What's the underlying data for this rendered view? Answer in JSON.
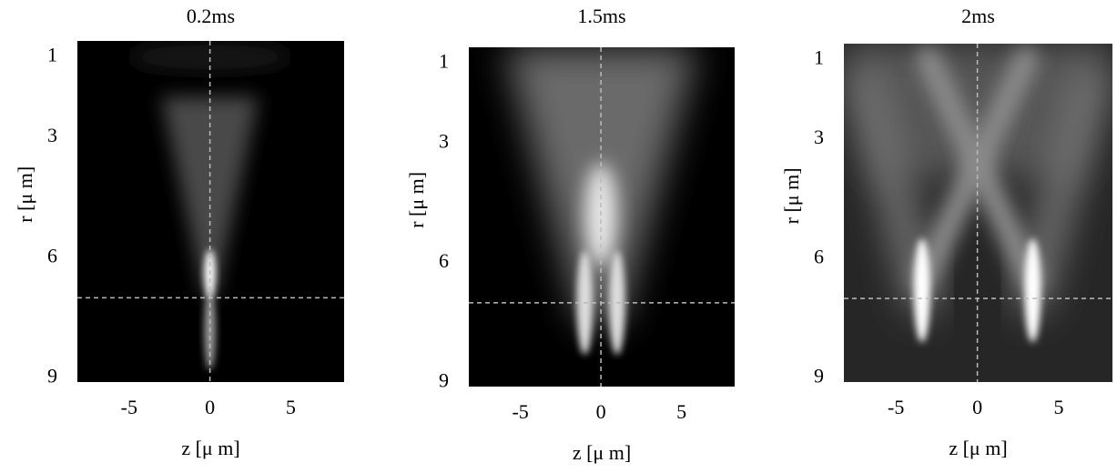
{
  "chart_data": [
    {
      "type": "heatmap",
      "title": "0.2ms",
      "xlabel": "z [μ m]",
      "ylabel": "r [μ m]",
      "xlim": [
        -8.2,
        8.3
      ],
      "ylim": [
        0.6,
        9.1
      ],
      "xticks": [
        -5,
        0,
        5
      ],
      "yticks": [
        1,
        3,
        6,
        9
      ],
      "guides": {
        "x": 0,
        "y": 7
      }
    },
    {
      "type": "heatmap",
      "title": "1.5ms",
      "xlabel": "z [μ m]",
      "ylabel": "r [μ m]",
      "xlim": [
        -8.2,
        8.3
      ],
      "ylim": [
        0.6,
        9.1
      ],
      "xticks": [
        -5,
        0,
        5
      ],
      "yticks": [
        1,
        3,
        6,
        9
      ],
      "guides": {
        "x": 0,
        "y": 7
      }
    },
    {
      "type": "heatmap",
      "title": "2ms",
      "xlabel": "z [μ m]",
      "ylabel": "r [μ m]",
      "xlim": [
        -8.2,
        8.3
      ],
      "ylim": [
        0.6,
        9.1
      ],
      "xticks": [
        -5,
        0,
        5
      ],
      "yticks": [
        1,
        3,
        6,
        9
      ],
      "guides": {
        "x": 0,
        "y": 7
      }
    }
  ]
}
